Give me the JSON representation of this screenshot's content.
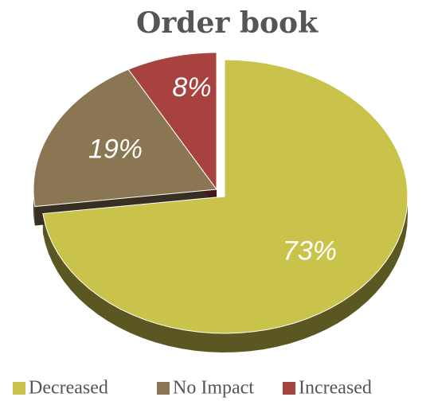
{
  "chart_data": {
    "type": "pie",
    "title": "Order book",
    "categories": [
      "Decreased",
      "No Impact",
      "Increased"
    ],
    "values": [
      73,
      19,
      8
    ],
    "value_labels": [
      "73%",
      "19%",
      "8%"
    ],
    "colors": [
      "#c9c24b",
      "#8a7652",
      "#a8423f"
    ],
    "legend": "bottom"
  }
}
